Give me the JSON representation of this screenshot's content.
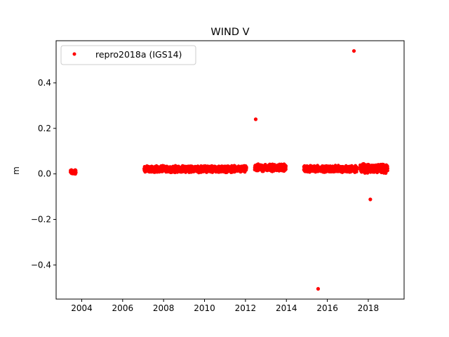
{
  "chart_data": {
    "type": "scatter",
    "title": "WIND V",
    "xlabel": "",
    "ylabel": "m",
    "xlim": [
      2002.75,
      2019.75
    ],
    "ylim": [
      -0.55,
      0.585
    ],
    "xticks": [
      2004,
      2006,
      2008,
      2010,
      2012,
      2014,
      2016,
      2018
    ],
    "xtick_labels": [
      "2004",
      "2006",
      "2008",
      "2010",
      "2012",
      "2014",
      "2016",
      "2018"
    ],
    "yticks": [
      -0.4,
      -0.2,
      0.0,
      0.2,
      0.4
    ],
    "ytick_labels": [
      "−0.4",
      "−0.2",
      "0.0",
      "0.2",
      "0.4"
    ],
    "grid": false,
    "legend": {
      "position": "upper left"
    },
    "series": [
      {
        "name": "repro2018a (IGS14)",
        "color": "#ff0000",
        "marker": "circle",
        "segments": [
          {
            "x_start": 2003.45,
            "x_end": 2003.72,
            "y_mean": 0.008,
            "y_spread": 0.012
          },
          {
            "x_start": 2007.05,
            "x_end": 2012.05,
            "y_mean": 0.021,
            "y_spread": 0.016
          },
          {
            "x_start": 2012.45,
            "x_end": 2013.98,
            "y_mean": 0.027,
            "y_spread": 0.018
          },
          {
            "x_start": 2014.85,
            "x_end": 2017.45,
            "y_mean": 0.022,
            "y_spread": 0.016
          },
          {
            "x_start": 2017.6,
            "x_end": 2018.95,
            "y_mean": 0.024,
            "y_spread": 0.022
          }
        ],
        "outliers": [
          {
            "x": 2012.5,
            "y": 0.24
          },
          {
            "x": 2015.55,
            "y": -0.505
          },
          {
            "x": 2017.3,
            "y": 0.54
          },
          {
            "x": 2018.1,
            "y": -0.112
          }
        ]
      }
    ]
  }
}
